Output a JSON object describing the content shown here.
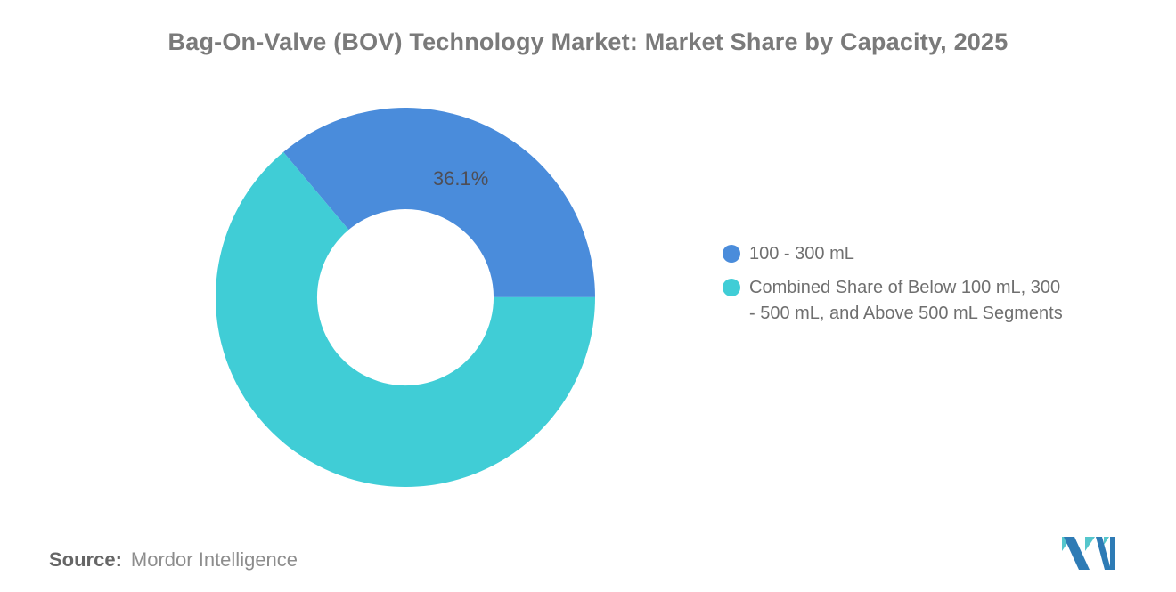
{
  "page": {
    "title": "Bag-On-Valve (BOV) Technology Market: Market Share by Capacity, 2025",
    "background": "#ffffff",
    "title_color": "#7a7a7a"
  },
  "chart_data": {
    "type": "pie",
    "subtype": "donut",
    "title": "Bag-On-Valve (BOV) Technology Market: Market Share by Capacity, 2025",
    "series": [
      {
        "name": "100 - 300 mL",
        "value": 36.1,
        "color": "#4A8CDB",
        "data_label": "36.1%",
        "label_visible": true
      },
      {
        "name": "Combined Share of Below 100 mL, 300 - 500 mL, and Above 500 mL Segments",
        "value": 63.9,
        "color": "#40CDD6",
        "data_label": "63.9%",
        "label_visible": false
      }
    ],
    "total": 100,
    "start_angle_deg": -40,
    "clockwise": true,
    "inner_radius_ratio": 0.465,
    "legend_position": "right",
    "data_label_color": "#4e4e56"
  },
  "legend": {
    "items": [
      {
        "color": "#4A8CDB",
        "lines": [
          "100 - 300 mL"
        ]
      },
      {
        "color": "#40CDD6",
        "lines": [
          "Combined Share of Below 100 mL, 300",
          "- 500 mL, and Above 500 mL Segments"
        ]
      }
    ]
  },
  "footer": {
    "source_label": "Source:",
    "source_value": "Mordor Intelligence"
  },
  "logo": {
    "name": "mordor-intelligence-logo",
    "blue": "#2E7BB5",
    "teal": "#55C6CC"
  }
}
